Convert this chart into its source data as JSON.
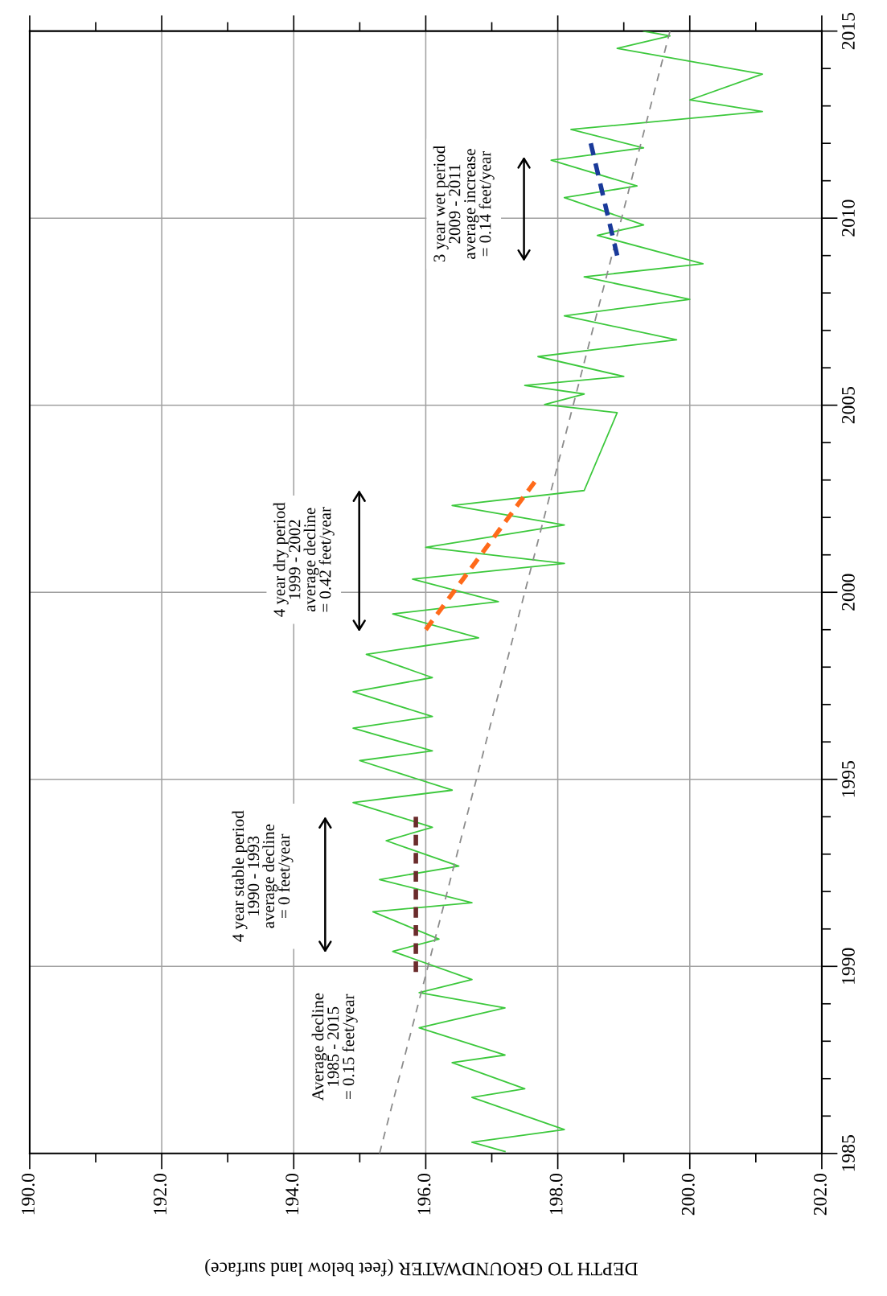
{
  "chart_data": {
    "type": "line",
    "orientation": "horizontal",
    "xlabel": "DEPTH TO GROUNDWATER (feet below land surface)",
    "ylim": [
      1985,
      2015
    ],
    "xlim": [
      190,
      202
    ],
    "yticks": [
      1985,
      {
        "value": 1986,
        "label": null
      },
      {
        "value": 1987,
        "label": null
      },
      {
        "value": 1988,
        "label": null
      },
      {
        "value": 1989,
        "label": null
      },
      1990,
      {
        "value": 1991,
        "label": null
      },
      {
        "value": 1992,
        "label": null
      },
      {
        "value": 1993,
        "label": null
      },
      {
        "value": 1994,
        "label": null
      },
      1995,
      {
        "value": 1996,
        "label": null
      },
      {
        "value": 1997,
        "label": null
      },
      {
        "value": 1998,
        "label": null
      },
      {
        "value": 1999,
        "label": null
      },
      2000,
      {
        "value": 2001,
        "label": null
      },
      {
        "value": 2002,
        "label": null
      },
      {
        "value": 2003,
        "label": null
      },
      {
        "value": 2004,
        "label": null
      },
      2005,
      {
        "value": 2006,
        "label": null
      },
      {
        "value": 2007,
        "label": null
      },
      {
        "value": 2008,
        "label": null
      },
      {
        "value": 2009,
        "label": null
      },
      2010,
      {
        "value": 2011,
        "label": null
      },
      {
        "value": 2012,
        "label": null
      },
      {
        "value": 2013,
        "label": null
      },
      {
        "value": 2014,
        "label": null
      },
      2015
    ],
    "xticks": [
      {
        "value": 190,
        "label": "190.0"
      },
      {
        "value": 191,
        "label": null
      },
      {
        "value": 192,
        "label": "192.0"
      },
      {
        "value": 193,
        "label": null
      },
      {
        "value": 194,
        "label": "194.0"
      },
      {
        "value": 195,
        "label": null
      },
      {
        "value": 196,
        "label": "196.0"
      },
      {
        "value": 197,
        "label": null
      },
      {
        "value": 198,
        "label": "198.0"
      },
      {
        "value": 199,
        "label": null
      },
      {
        "value": 200,
        "label": "200.0"
      },
      {
        "value": 201,
        "label": null
      },
      {
        "value": 202,
        "label": "202.0"
      }
    ],
    "grid": true,
    "series": [
      {
        "color": "#3cc83c",
        "line_style": "solid",
        "x": [
          1985.05,
          1985.3,
          1985.64,
          1986.5,
          1986.73,
          1987.43,
          1987.63,
          1988.36,
          1988.89,
          1989.3,
          1989.65,
          1990.4,
          1990.73,
          1991.46,
          1991.7,
          1992.32,
          1992.68,
          1993.36,
          1993.72,
          1994.38,
          1994.71,
          1995.5,
          1995.76,
          1996.37,
          1996.68,
          1997.34,
          1997.72,
          1998.34,
          1998.78,
          1999.42,
          1999.75,
          2000.35,
          2000.77,
          2001.2,
          2001.8,
          2002.32,
          2002.72,
          2004.8,
          2005.02,
          2005.3,
          2005.53,
          2005.77,
          2006.3,
          2006.75,
          2007.39,
          2007.83,
          2008.43,
          2008.78,
          2009.54,
          2009.82,
          2010.55,
          2010.86,
          2011.55,
          2011.88,
          2012.37,
          2012.85,
          2013.16,
          2013.85,
          2014.54,
          2014.87,
          2015.0
        ],
        "values": [
          197.2,
          196.7,
          198.1,
          196.7,
          197.5,
          196.4,
          197.2,
          195.9,
          197.2,
          195.9,
          196.7,
          195.5,
          196.2,
          195.2,
          196.7,
          195.3,
          196.5,
          195.4,
          196.1,
          194.9,
          196.4,
          195.0,
          196.1,
          194.9,
          196.1,
          194.9,
          196.1,
          195.1,
          196.8,
          195.5,
          197.1,
          195.8,
          198.1,
          196.0,
          198.1,
          196.4,
          198.4,
          198.9,
          197.8,
          198.4,
          197.5,
          199.0,
          197.7,
          199.8,
          198.1,
          200.0,
          198.4,
          200.2,
          198.6,
          199.3,
          198.1,
          199.2,
          197.9,
          199.3,
          198.2,
          201.1,
          200.0,
          201.1,
          198.9,
          199.7,
          199.3
        ]
      },
      {
        "color": "#8c8c8c",
        "line_style": "dashed",
        "x": [
          1985,
          2015
        ],
        "values": [
          195.3,
          199.7
        ]
      },
      {
        "color": "#6b2c2c",
        "line_style": "dashed",
        "x": [
          1989.85,
          1994.0
        ],
        "values": [
          195.85,
          195.85
        ]
      },
      {
        "color": "#ff6a1a",
        "line_style": "dashed",
        "x": [
          1999.0,
          2002.95
        ],
        "values": [
          196.0,
          197.65
        ]
      },
      {
        "color": "#1a3a9a",
        "line_style": "dashed",
        "x": [
          2009.0,
          2012.0
        ],
        "values": [
          198.9,
          198.5
        ]
      }
    ],
    "annotations": [
      "Average decline\n1985 - 2015\n= 0.15 feet/year",
      "4 year stable period\n1990 - 1993\naverage decline\n= 0 feet/year",
      "4 year dry period\n1999 - 2002\naverage decline\n= 0.42 feet/year",
      "3 year wet period\n2009 - 2011\naverage increase\n= 0.14 feet/year"
    ]
  }
}
